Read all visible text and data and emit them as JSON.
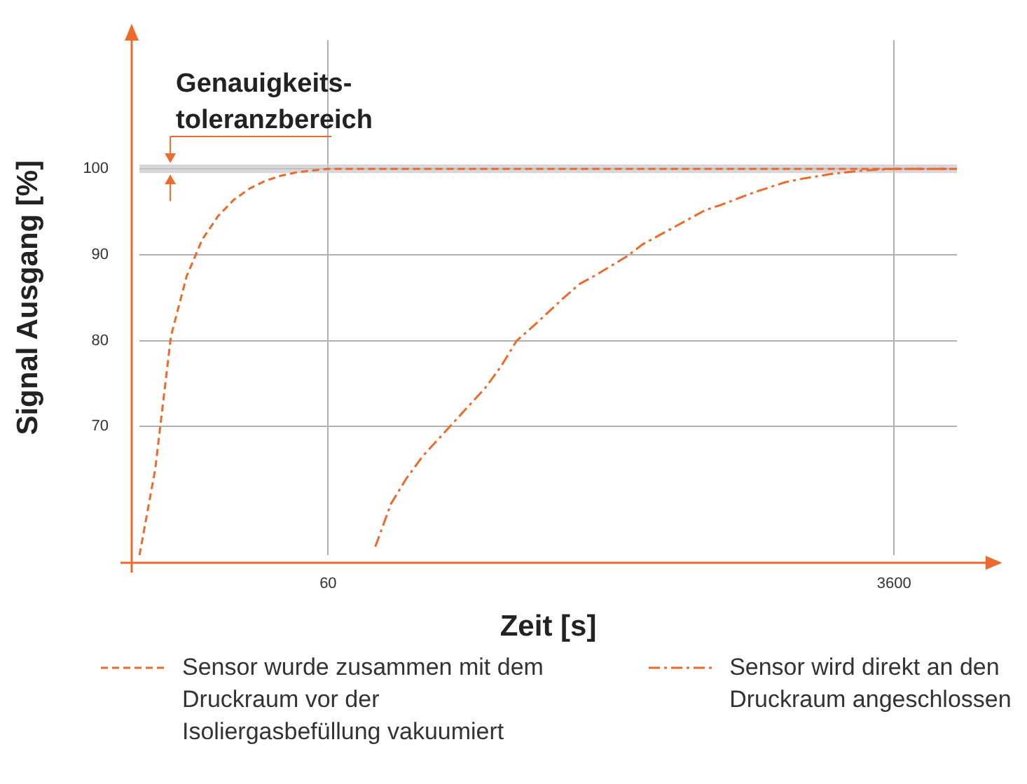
{
  "chart_data": {
    "type": "line",
    "xlabel": "Zeit [s]",
    "ylabel": "Signal Ausgang [%]",
    "categories": [
      null,
      null,
      null,
      null,
      null,
      null,
      null,
      null,
      null,
      null,
      null,
      null,
      "60",
      null,
      null,
      null,
      null,
      null,
      null,
      null,
      null,
      null,
      null,
      null,
      null,
      null,
      null,
      null,
      null,
      null,
      null,
      null,
      null,
      null,
      null,
      null,
      null,
      null,
      null,
      null,
      null,
      null,
      null,
      null,
      null,
      null,
      null,
      null,
      "3600",
      null,
      null,
      null,
      null
    ],
    "series": [
      {
        "name": "Sensor wurde zusammen mit dem Druckraum vor der Isoliergasbefüllung vakuumiert",
        "color": "#ec6a2c",
        "line_style": "dashed",
        "values": [
          55,
          65,
          80.5,
          87.5,
          91.8,
          94.5,
          96.4,
          97.7,
          98.6,
          99.2,
          99.6,
          99.8,
          100,
          100,
          100,
          100,
          100,
          100,
          100,
          100,
          100,
          100,
          100,
          100,
          100,
          100,
          100,
          100,
          100,
          100,
          100,
          100,
          100,
          100,
          100,
          100,
          100,
          100,
          100,
          100,
          100,
          100,
          100,
          100,
          100,
          100,
          100,
          100,
          100,
          100,
          100,
          100,
          100
        ]
      },
      {
        "name": "Sensor wird direkt an den Druckraum angeschlossen",
        "color": "#ec6a2c",
        "line_style": "dashdot",
        "values": [
          null,
          null,
          null,
          null,
          null,
          null,
          null,
          null,
          null,
          null,
          null,
          null,
          null,
          null,
          null,
          56,
          61,
          64,
          66.5,
          68.5,
          70.5,
          72.5,
          74.5,
          77,
          80,
          81.6,
          83.3,
          85,
          86.6,
          87.6,
          88.7,
          89.8,
          91.2,
          92.2,
          93.2,
          94.2,
          95.2,
          95.8,
          96.5,
          97.2,
          97.8,
          98.4,
          98.8,
          99.1,
          99.4,
          99.6,
          99.8,
          99.9,
          100,
          100,
          100,
          100,
          100
        ]
      }
    ],
    "ylim": [
      55,
      115
    ],
    "yticks": [
      70,
      80,
      90,
      100
    ],
    "grid": true,
    "legend": "bottom",
    "marker": "none",
    "bands": [
      {
        "axis": "y",
        "from": 99.5,
        "to": 100.5,
        "label": "Genauigkeits-toleranzbereich",
        "color": "#c8c8c8"
      }
    ]
  }
}
